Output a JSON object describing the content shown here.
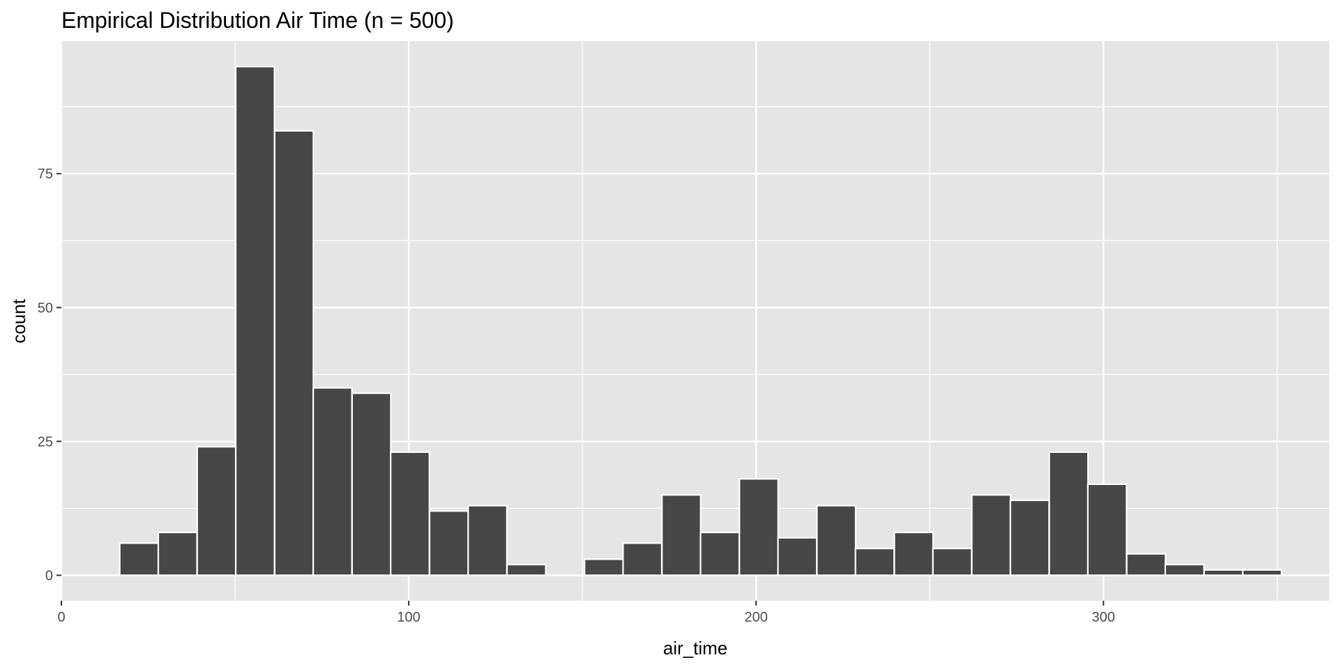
{
  "chart_data": {
    "type": "bar",
    "title": "Empirical Distribution Air Time (n = 500)",
    "xlabel": "air_time",
    "ylabel": "count",
    "xlim": [
      0,
      365
    ],
    "ylim": [
      -4.75,
      99.75
    ],
    "x_ticks": [
      0,
      100,
      200,
      300
    ],
    "x_tick_labels": [
      "0",
      "100",
      "200",
      "300"
    ],
    "y_ticks": [
      0,
      25,
      50,
      75
    ],
    "y_tick_labels": [
      "0",
      "25",
      "50",
      "75"
    ],
    "grid": true,
    "bin_width": 11.15,
    "bins": [
      {
        "start": 16.8,
        "count": 6
      },
      {
        "start": 27.9,
        "count": 8
      },
      {
        "start": 39.1,
        "count": 24
      },
      {
        "start": 50.2,
        "count": 95
      },
      {
        "start": 61.4,
        "count": 83
      },
      {
        "start": 72.5,
        "count": 35
      },
      {
        "start": 83.7,
        "count": 34
      },
      {
        "start": 94.8,
        "count": 23
      },
      {
        "start": 106.0,
        "count": 12
      },
      {
        "start": 117.1,
        "count": 13
      },
      {
        "start": 128.3,
        "count": 2
      },
      {
        "start": 139.4,
        "count": 0
      },
      {
        "start": 150.6,
        "count": 3
      },
      {
        "start": 161.7,
        "count": 6
      },
      {
        "start": 172.9,
        "count": 15
      },
      {
        "start": 184.0,
        "count": 8
      },
      {
        "start": 195.2,
        "count": 18
      },
      {
        "start": 206.3,
        "count": 7
      },
      {
        "start": 217.5,
        "count": 13
      },
      {
        "start": 228.6,
        "count": 5
      },
      {
        "start": 239.8,
        "count": 8
      },
      {
        "start": 250.9,
        "count": 5
      },
      {
        "start": 262.1,
        "count": 15
      },
      {
        "start": 273.2,
        "count": 14
      },
      {
        "start": 284.4,
        "count": 23
      },
      {
        "start": 295.5,
        "count": 17
      },
      {
        "start": 306.7,
        "count": 4
      },
      {
        "start": 317.8,
        "count": 2
      },
      {
        "start": 329.0,
        "count": 1
      },
      {
        "start": 340.1,
        "count": 1
      }
    ],
    "colors": {
      "panel_background": "#E5E5E5",
      "grid_major": "#FFFFFF",
      "grid_minor": "#F2F2F2",
      "bar_fill": "#474747",
      "bar_outline": "#FFFFFF",
      "tick_mark": "#333333"
    }
  }
}
